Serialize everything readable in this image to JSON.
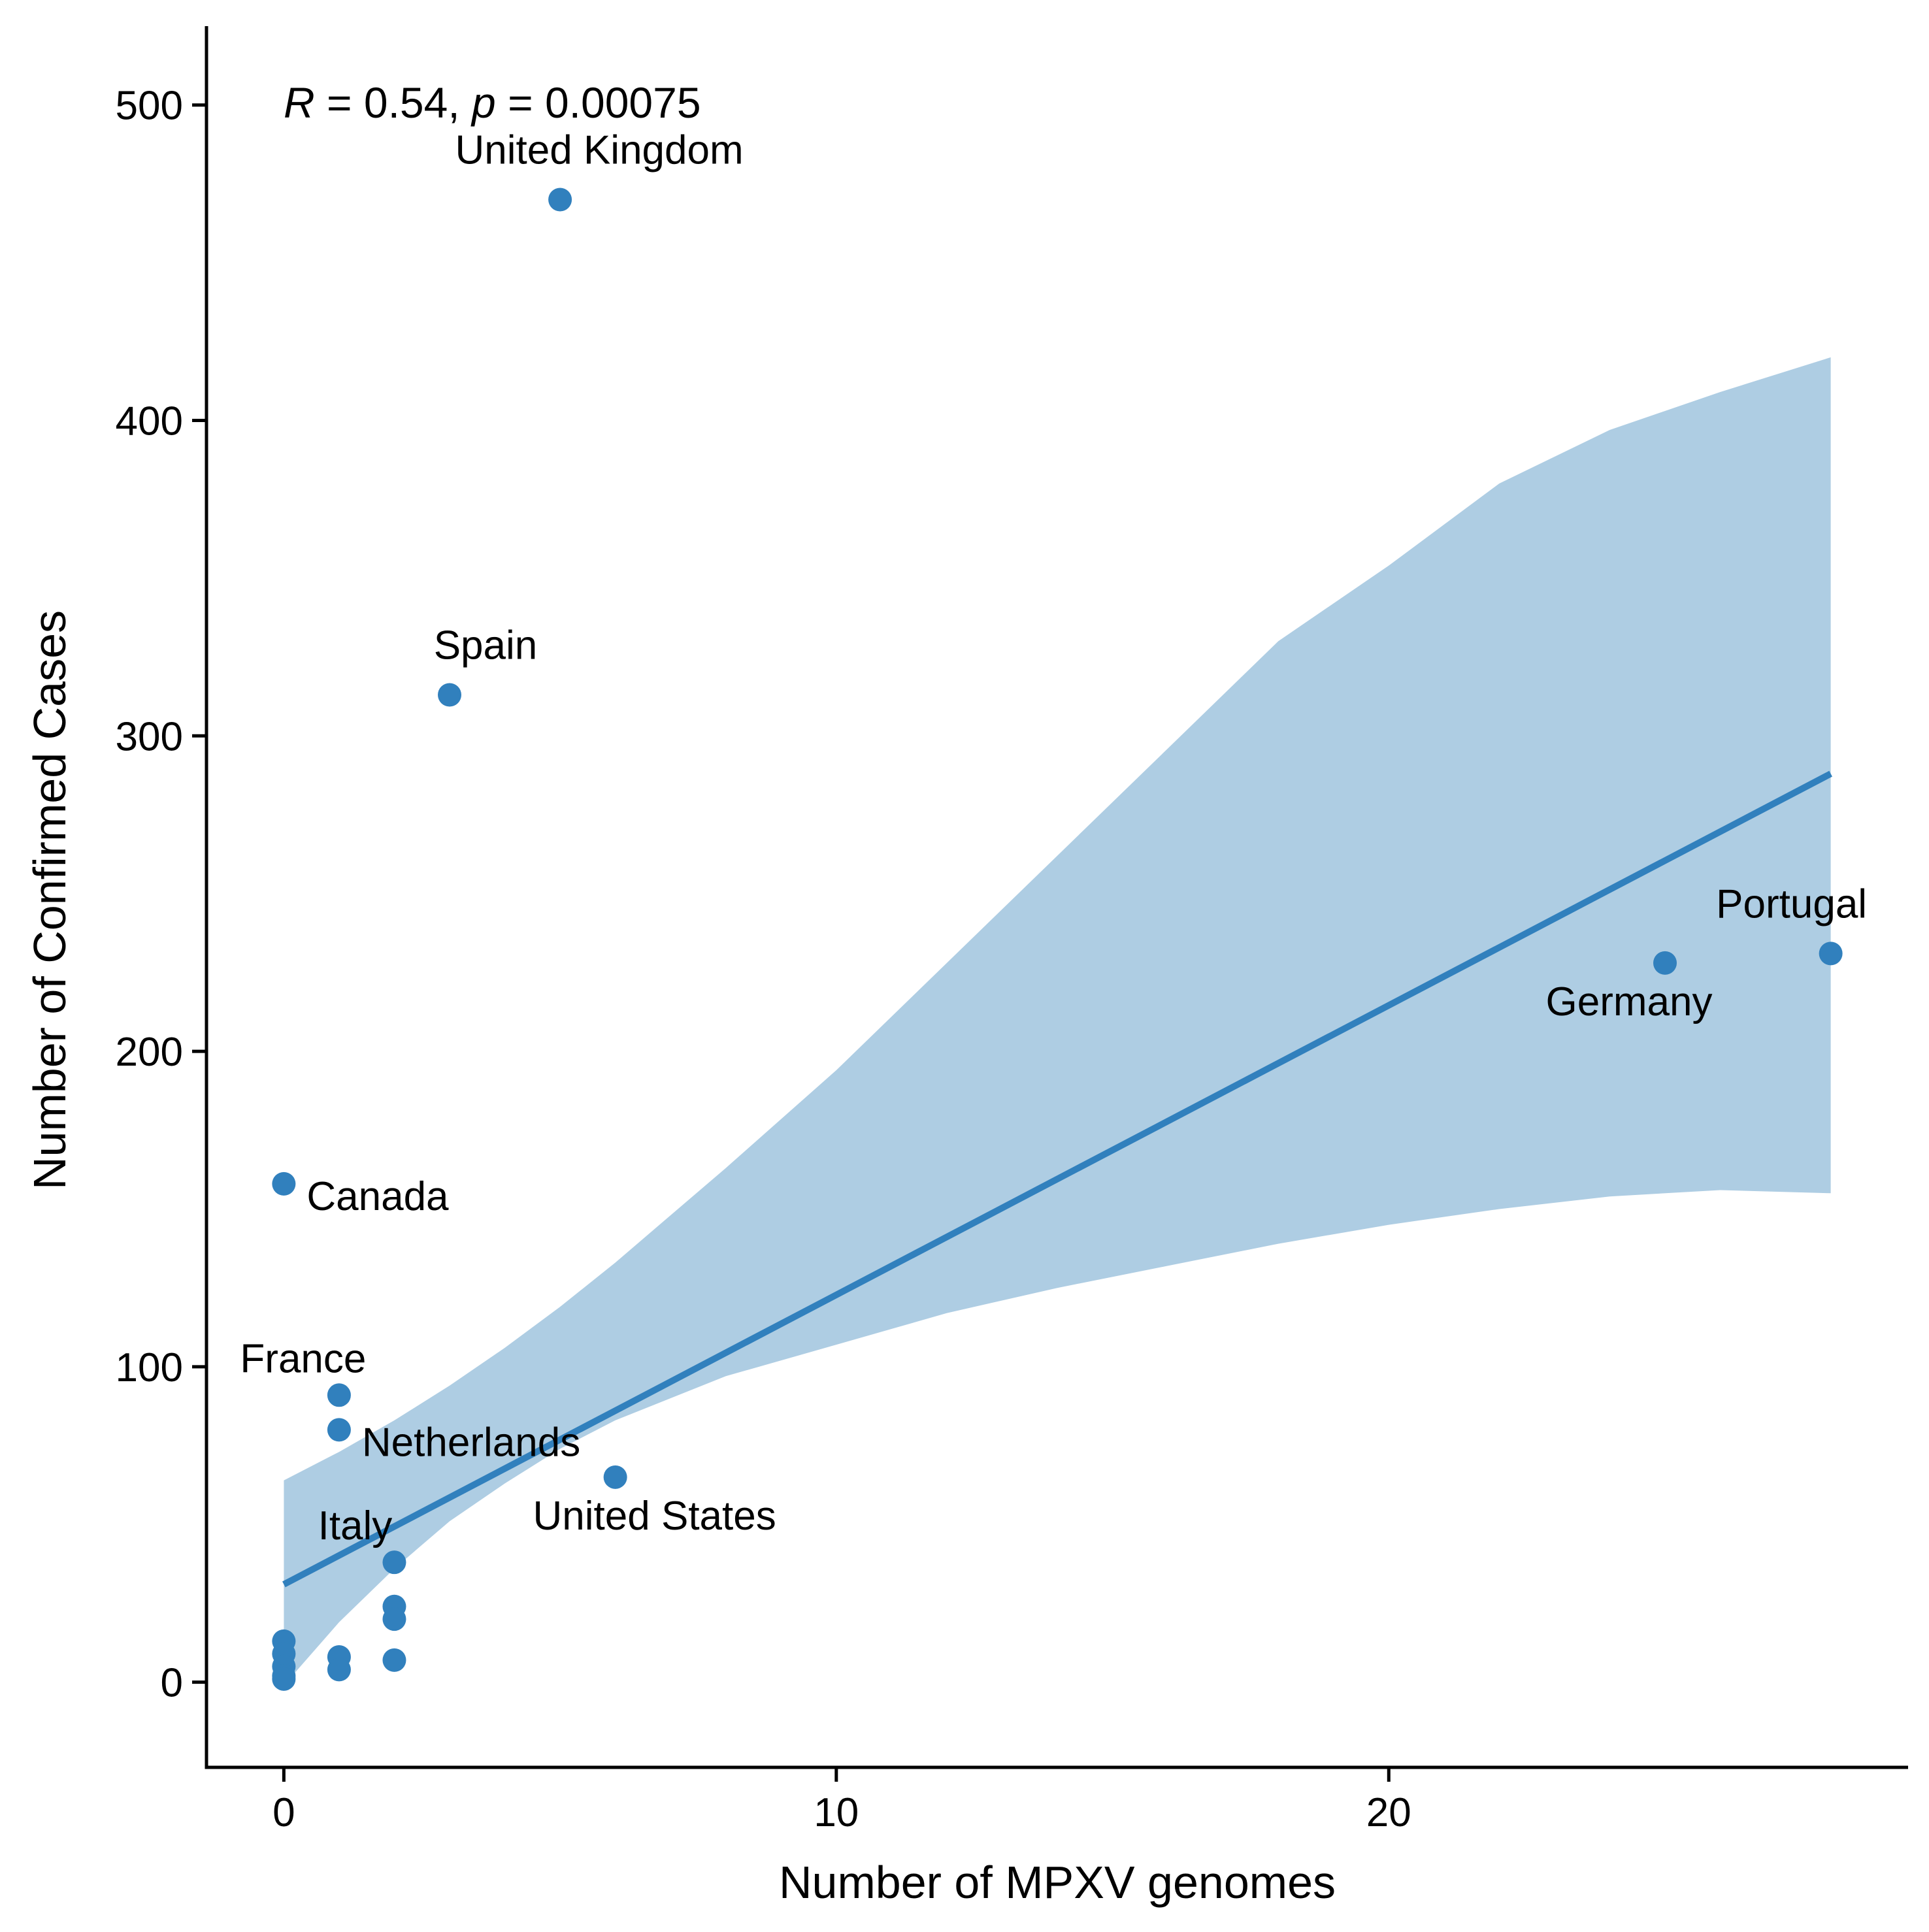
{
  "chart_data": {
    "type": "scatter",
    "title": "",
    "xlabel": "Number of MPXV genomes",
    "ylabel": "Number of Confirmed Cases",
    "xlim": [
      -1.4,
      29.4
    ],
    "ylim": [
      -27,
      525
    ],
    "xticks": [
      0,
      10,
      20
    ],
    "yticks": [
      0,
      100,
      200,
      300,
      400,
      500
    ],
    "grid": false,
    "legend": "none",
    "point_color": "#3180BD",
    "band_color": "#AECDE3",
    "line_color": "#3180BD",
    "annotation": {
      "r_symbol": "R",
      "r_text": " = 0.54, ",
      "p_symbol": "p",
      "p_text": " = 0.00075"
    },
    "regression": {
      "x": [
        0,
        28
      ],
      "y": [
        31,
        288
      ]
    },
    "confidence_band": {
      "x": [
        0,
        1,
        2,
        3,
        4,
        5,
        6,
        8,
        10,
        12,
        14,
        16,
        18,
        20,
        22,
        24,
        26,
        28
      ],
      "upper": [
        64,
        73,
        83,
        94,
        106,
        119,
        133,
        163,
        194,
        228,
        262,
        296,
        330,
        354,
        380,
        397,
        409,
        420
      ],
      "lower": [
        -1,
        19,
        36,
        51,
        63,
        74,
        83,
        97,
        107,
        117,
        125,
        132,
        139,
        145,
        150,
        154,
        156,
        155
      ]
    },
    "points": [
      {
        "x": 5,
        "y": 470,
        "label": "United Kingdom"
      },
      {
        "x": 3,
        "y": 313,
        "label": "Spain"
      },
      {
        "x": 28,
        "y": 231,
        "label": "Portugal"
      },
      {
        "x": 25,
        "y": 228,
        "label": "Germany"
      },
      {
        "x": 0,
        "y": 158,
        "label": "Canada"
      },
      {
        "x": 1,
        "y": 91,
        "label": "France"
      },
      {
        "x": 1,
        "y": 80,
        "label": "Netherlands"
      },
      {
        "x": 6,
        "y": 65,
        "label": "United States"
      },
      {
        "x": 2,
        "y": 38,
        "label": "Italy"
      },
      {
        "x": 2,
        "y": 24,
        "label": ""
      },
      {
        "x": 2,
        "y": 20,
        "label": ""
      },
      {
        "x": 2,
        "y": 7,
        "label": ""
      },
      {
        "x": 1,
        "y": 8,
        "label": ""
      },
      {
        "x": 1,
        "y": 4,
        "label": ""
      },
      {
        "x": 0,
        "y": 13,
        "label": ""
      },
      {
        "x": 0,
        "y": 9,
        "label": ""
      },
      {
        "x": 0,
        "y": 5,
        "label": ""
      },
      {
        "x": 0,
        "y": 2,
        "label": ""
      },
      {
        "x": 0,
        "y": 1,
        "label": ""
      }
    ]
  }
}
